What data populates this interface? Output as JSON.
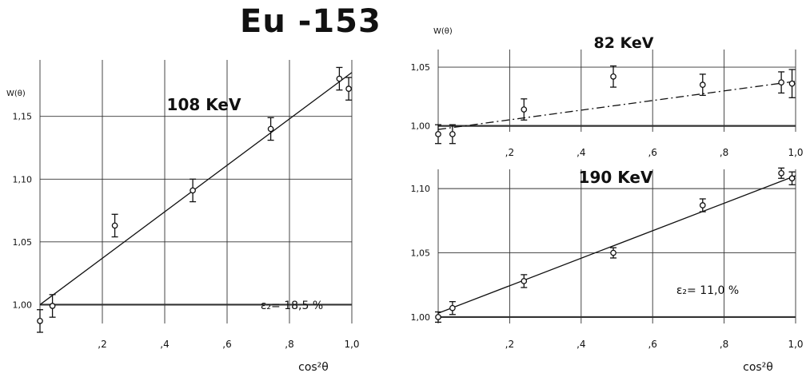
{
  "figure_title": "Eu -153",
  "chart_data": [
    {
      "type": "scatter",
      "title": "108 KeV",
      "ylabel": "W(θ)",
      "xlabel": "cos²θ",
      "xlim": [
        0,
        1.0
      ],
      "ylim": [
        0.985,
        1.195
      ],
      "x_ticks": [
        0.2,
        0.4,
        0.6,
        0.8,
        1.0
      ],
      "x_tick_labels": [
        ",2",
        ",4",
        ",6",
        ",8",
        "1,0"
      ],
      "y_ticks": [
        1.0,
        1.05,
        1.1,
        1.15
      ],
      "y_tick_labels": [
        "1,00",
        "1,05",
        "1,10",
        "1,15"
      ],
      "grid": true,
      "annotation": "ε₂= 18,5 %",
      "series": [
        {
          "x": [
            0.0,
            0.04,
            0.24,
            0.49,
            0.74,
            0.96,
            0.99
          ],
          "y": [
            0.987,
            0.999,
            1.063,
            1.091,
            1.14,
            1.18,
            1.172
          ],
          "err": [
            0.009,
            0.009,
            0.009,
            0.009,
            0.009,
            0.009,
            0.009
          ]
        }
      ],
      "fit_line": {
        "x": [
          0.0,
          1.0
        ],
        "y": [
          1.0,
          1.185
        ]
      }
    },
    {
      "type": "scatter",
      "title": "82 KeV",
      "ylabel": "W(θ)",
      "xlabel": "",
      "xlim": [
        0,
        1.0
      ],
      "ylim": [
        0.995,
        1.065
      ],
      "x_ticks": [
        0.2,
        0.4,
        0.6,
        0.8,
        1.0
      ],
      "x_tick_labels": [
        ",2",
        ",4",
        ",6",
        ",8",
        "1,0"
      ],
      "y_ticks": [
        1.0,
        1.05
      ],
      "y_tick_labels": [
        "1,00",
        "1,05"
      ],
      "grid": true,
      "series": [
        {
          "x": [
            0.0,
            0.04,
            0.24,
            0.49,
            0.74,
            0.96,
            0.99
          ],
          "y": [
            0.993,
            0.993,
            1.014,
            1.042,
            1.035,
            1.037,
            1.036
          ],
          "err": [
            0.008,
            0.008,
            0.009,
            0.009,
            0.009,
            0.009,
            0.012
          ]
        }
      ],
      "fit_line": {
        "x": [
          0.0,
          1.0
        ],
        "y": [
          0.997,
          1.038
        ],
        "style": "dash-dot"
      }
    },
    {
      "type": "scatter",
      "title": "190 KeV",
      "ylabel": "",
      "xlabel": "cos²θ",
      "xlim": [
        0,
        1.0
      ],
      "ylim": [
        0.995,
        1.115
      ],
      "x_ticks": [
        0.2,
        0.4,
        0.6,
        0.8,
        1.0
      ],
      "x_tick_labels": [
        ",2",
        ",4",
        ",6",
        ",8",
        "1,0"
      ],
      "y_ticks": [
        1.0,
        1.05,
        1.1
      ],
      "y_tick_labels": [
        "1,00",
        "1,05",
        "1,10"
      ],
      "grid": true,
      "annotation": "ε₂= 11,0 %",
      "series": [
        {
          "x": [
            0.0,
            0.04,
            0.24,
            0.49,
            0.74,
            0.96,
            0.99
          ],
          "y": [
            1.0,
            1.007,
            1.028,
            1.05,
            1.087,
            1.112,
            1.108
          ],
          "err": [
            0.004,
            0.005,
            0.005,
            0.004,
            0.005,
            0.004,
            0.005
          ]
        }
      ],
      "fit_line": {
        "x": [
          0.0,
          1.0
        ],
        "y": [
          1.003,
          1.11
        ]
      }
    }
  ]
}
